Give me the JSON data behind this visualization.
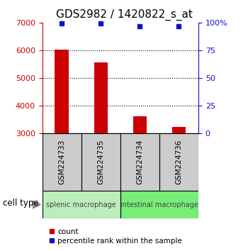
{
  "title": "GDS2982 / 1420822_s_at",
  "samples": [
    "GSM224733",
    "GSM224735",
    "GSM224734",
    "GSM224736"
  ],
  "counts": [
    6020,
    5560,
    3600,
    3230
  ],
  "percentile_ranks": [
    99,
    99,
    97,
    97
  ],
  "ylim_left": [
    3000,
    7000
  ],
  "ylim_right": [
    0,
    100
  ],
  "yticks_left": [
    3000,
    4000,
    5000,
    6000,
    7000
  ],
  "yticks_right": [
    0,
    25,
    50,
    75,
    100
  ],
  "ytick_labels_right": [
    "0",
    "25",
    "50",
    "75",
    "100%"
  ],
  "bar_color": "#cc0000",
  "dot_color": "#1111cc",
  "bar_bottom": 3000,
  "groups": [
    {
      "label": "splenic macrophage",
      "color": "#bbeebb",
      "samples": [
        0,
        1
      ]
    },
    {
      "label": "intestinal macrophage",
      "color": "#77ee77",
      "samples": [
        2,
        3
      ]
    }
  ],
  "cell_type_label": "cell type",
  "legend_count_label": "count",
  "legend_pct_label": "percentile rank within the sample",
  "left_tick_color": "#cc0000",
  "right_tick_color": "#1111cc",
  "dotgrid_lines": [
    4000,
    5000,
    6000
  ],
  "bar_width": 0.35,
  "sample_box_color": "#cccccc",
  "figure_bg": "#ffffff",
  "title_fontsize": 11
}
